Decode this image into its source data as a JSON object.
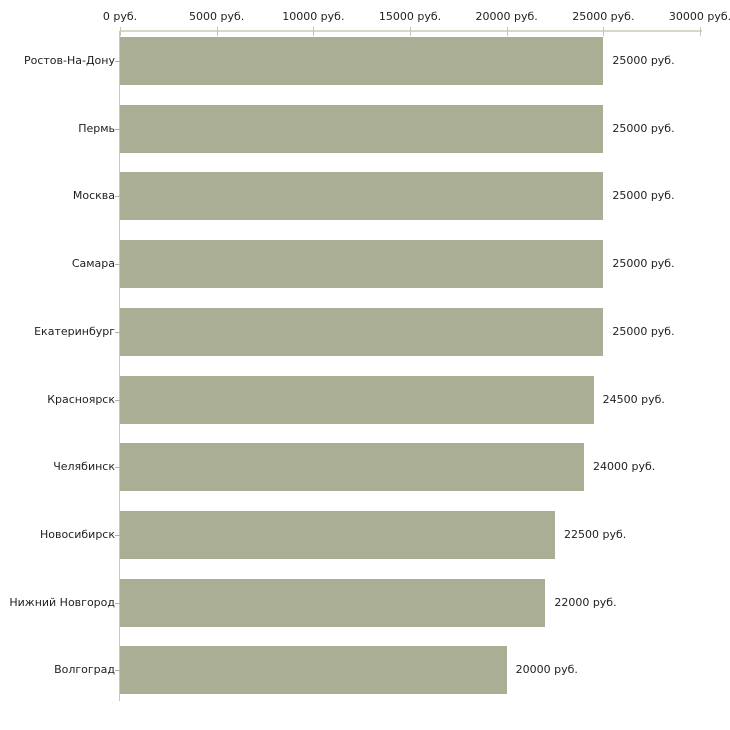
{
  "chart_data": {
    "type": "bar",
    "orientation": "horizontal",
    "title": "",
    "xlabel": "",
    "ylabel": "",
    "unit": "руб.",
    "xlim": [
      0,
      30000
    ],
    "grid": false,
    "legend": false,
    "x_ticks": [
      {
        "value": 0,
        "label": "0 руб."
      },
      {
        "value": 5000,
        "label": "5000 руб."
      },
      {
        "value": 10000,
        "label": "10000 руб."
      },
      {
        "value": 15000,
        "label": "15000 руб."
      },
      {
        "value": 20000,
        "label": "20000 руб."
      },
      {
        "value": 25000,
        "label": "25000 руб."
      },
      {
        "value": 30000,
        "label": "30000 руб."
      }
    ],
    "bars": [
      {
        "category": "Ростов-На-Дону",
        "value": 25000,
        "label": "25000 руб."
      },
      {
        "category": "Пермь",
        "value": 25000,
        "label": "25000 руб."
      },
      {
        "category": "Москва",
        "value": 25000,
        "label": "25000 руб."
      },
      {
        "category": "Самара",
        "value": 25000,
        "label": "25000 руб."
      },
      {
        "category": "Екатеринбург",
        "value": 25000,
        "label": "25000 руб."
      },
      {
        "category": "Красноярск",
        "value": 24500,
        "label": "24500 руб."
      },
      {
        "category": "Челябинск",
        "value": 24000,
        "label": "24000 руб."
      },
      {
        "category": "Новосибирск",
        "value": 22500,
        "label": "22500 руб."
      },
      {
        "category": "Нижний Новгород",
        "value": 22000,
        "label": "22000 руб."
      },
      {
        "category": "Волгоград",
        "value": 20000,
        "label": "20000 руб."
      }
    ]
  },
  "colors": {
    "background": "#ffffff",
    "bar_fill": "#a9ae94",
    "axis_line": "#d6d9c6",
    "tick_mark": "#c3c7ab",
    "y_axis_line": "#c6c6c6",
    "category_tick": "#b0b0a4",
    "text": "#1f1f1f"
  }
}
